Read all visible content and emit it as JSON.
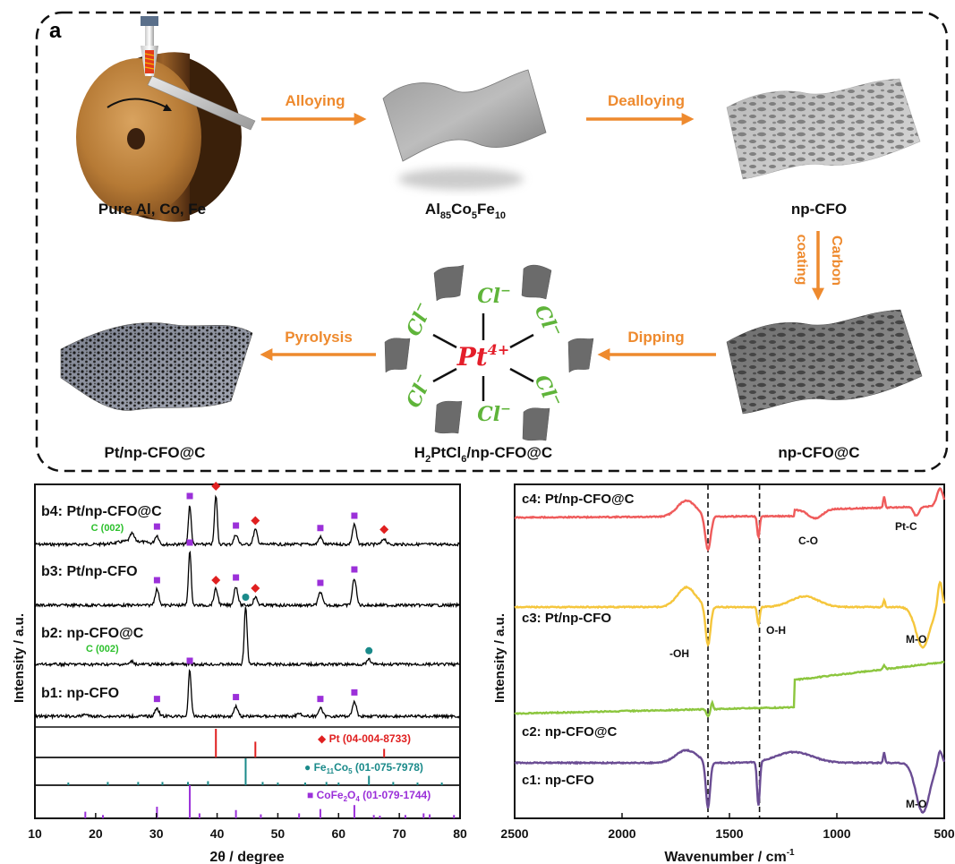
{
  "panel_a": {
    "label": "a",
    "step_labels": {
      "alloying": "Alloying",
      "dealloying": "Dealloying",
      "carbon": "Carbon",
      "coating": "coating",
      "dipping": "Dipping",
      "pyrolysis": "Pyrolysis"
    },
    "captions": {
      "pure": "Pure Al, Co, Fe",
      "alloy_al": "Al",
      "alloy_al_sub": "85",
      "alloy_co": "Co",
      "alloy_co_sub": "5",
      "alloy_fe": "Fe",
      "alloy_fe_sub": "10",
      "npcfo": "np-CFO",
      "npcfoc": "np-CFO@C",
      "h2_pre": "H",
      "h2_sub": "2",
      "pt_mid": "PtCl",
      "pt_sub": "6",
      "h2_post": "/np-CFO@C",
      "final": "Pt/np-CFO@C"
    },
    "complex": {
      "center": "Pt",
      "center_sup": "4+",
      "ligand": "Cl",
      "ligand_sup": "−"
    },
    "colors": {
      "arrow": "#ee8a2e",
      "pt": "#e41e2a",
      "cl": "#5fb43a"
    }
  },
  "chart_data": [
    {
      "type": "line",
      "panel": "b",
      "xlabel": "2θ / degree",
      "ylabel": "Intensity / a.u.",
      "xlim": [
        10,
        80
      ],
      "xticks": [
        "10",
        "20",
        "30",
        "40",
        "50",
        "60",
        "70",
        "80"
      ],
      "series": [
        {
          "name": "b4: Pt/np-CFO@C",
          "color": "#000000",
          "peaks": [
            {
              "x": 26,
              "h": 0.15
            },
            {
              "x": 30.1,
              "h": 0.18
            },
            {
              "x": 35.5,
              "h": 0.8
            },
            {
              "x": 39.8,
              "h": 1.0
            },
            {
              "x": 43.1,
              "h": 0.2
            },
            {
              "x": 46.3,
              "h": 0.3
            },
            {
              "x": 57,
              "h": 0.15
            },
            {
              "x": 62.6,
              "h": 0.4
            },
            {
              "x": 67.5,
              "h": 0.12
            }
          ]
        },
        {
          "name": "b3: Pt/np-CFO",
          "color": "#000000",
          "peaks": [
            {
              "x": 30.1,
              "h": 0.3
            },
            {
              "x": 35.5,
              "h": 1.0
            },
            {
              "x": 39.8,
              "h": 0.3
            },
            {
              "x": 43.1,
              "h": 0.35
            },
            {
              "x": 46.3,
              "h": 0.15
            },
            {
              "x": 57,
              "h": 0.25
            },
            {
              "x": 62.6,
              "h": 0.5
            }
          ]
        },
        {
          "name": "b2: np-CFO@C",
          "color": "#000000",
          "peaks": [
            {
              "x": 26,
              "h": 0.05
            },
            {
              "x": 44.7,
              "h": 1.0
            },
            {
              "x": 65,
              "h": 0.08
            }
          ]
        },
        {
          "name": "b1: np-CFO",
          "color": "#000000",
          "peaks": [
            {
              "x": 18.3,
              "h": 0.05
            },
            {
              "x": 30.1,
              "h": 0.18
            },
            {
              "x": 35.5,
              "h": 1.0
            },
            {
              "x": 43.1,
              "h": 0.22
            },
            {
              "x": 53.5,
              "h": 0.08
            },
            {
              "x": 57,
              "h": 0.18
            },
            {
              "x": 62.6,
              "h": 0.32
            }
          ]
        }
      ],
      "annotations": {
        "c002": "C (002)"
      },
      "references": [
        {
          "name_main": "Pt (04-004-8733)",
          "color": "#e02020",
          "marker": "diamond",
          "lines": [
            {
              "x": 39.8,
              "h": 1.0
            },
            {
              "x": 46.3,
              "h": 0.55
            },
            {
              "x": 67.5,
              "h": 0.3
            }
          ]
        },
        {
          "name_main": "Fe",
          "sub1": "11",
          "name_mid": "Co",
          "sub2": "5",
          "name_tail": " (01-075-7978)",
          "color": "#1a8a8a",
          "marker": "circle",
          "lines": [
            {
              "x": 15.5,
              "h": 0.1
            },
            {
              "x": 22,
              "h": 0.12
            },
            {
              "x": 27,
              "h": 0.12
            },
            {
              "x": 31,
              "h": 0.12
            },
            {
              "x": 35.2,
              "h": 0.12
            },
            {
              "x": 38.5,
              "h": 0.15
            },
            {
              "x": 44.7,
              "h": 1.0
            },
            {
              "x": 47.5,
              "h": 0.12
            },
            {
              "x": 50,
              "h": 0.1
            },
            {
              "x": 54.5,
              "h": 0.1
            },
            {
              "x": 58,
              "h": 0.12
            },
            {
              "x": 60,
              "h": 0.1
            },
            {
              "x": 65,
              "h": 0.35
            },
            {
              "x": 69,
              "h": 0.12
            },
            {
              "x": 73,
              "h": 0.1
            },
            {
              "x": 77,
              "h": 0.1
            }
          ]
        },
        {
          "name_main": "CoFe",
          "sub1": "2",
          "name_mid": "O",
          "sub2": "4",
          "name_tail": " (01-079-1744)",
          "color": "#9b30d9",
          "marker": "square",
          "lines": [
            {
              "x": 18.3,
              "h": 0.2
            },
            {
              "x": 21.2,
              "h": 0.1
            },
            {
              "x": 30.1,
              "h": 0.35
            },
            {
              "x": 35.5,
              "h": 1.0
            },
            {
              "x": 37.1,
              "h": 0.15
            },
            {
              "x": 43.1,
              "h": 0.25
            },
            {
              "x": 47.2,
              "h": 0.12
            },
            {
              "x": 53.5,
              "h": 0.15
            },
            {
              "x": 57,
              "h": 0.28
            },
            {
              "x": 62.6,
              "h": 0.4
            },
            {
              "x": 65.8,
              "h": 0.1
            },
            {
              "x": 66.8,
              "h": 0.08
            },
            {
              "x": 71,
              "h": 0.1
            },
            {
              "x": 74,
              "h": 0.15
            },
            {
              "x": 75,
              "h": 0.12
            },
            {
              "x": 79,
              "h": 0.1
            }
          ]
        }
      ]
    },
    {
      "type": "line",
      "panel": "c",
      "xlabel": "Wavenumber / cm",
      "xlabel_sup": "-1",
      "ylabel": "Intensity / a.u.",
      "xlim": [
        2500,
        500
      ],
      "xticks": [
        "2500",
        "2000",
        "1500",
        "1000",
        "500"
      ],
      "dashed_lines_x": [
        1600,
        1360
      ],
      "series": [
        {
          "name": "c4: Pt/np-CFO@C",
          "color": "#ef5b5b"
        },
        {
          "name": "c3: Pt/np-CFO",
          "color": "#f5c63c"
        },
        {
          "name": "c2: np-CFO@C",
          "color": "#8cc63e"
        },
        {
          "name": "c1: np-CFO",
          "color": "#6a4c93"
        }
      ],
      "annotations": {
        "co": "C-O",
        "ptc": "Pt-C",
        "oh_left": "-OH",
        "oh_right": "O-H",
        "mo1": "M-O",
        "mo2": "M-O"
      }
    }
  ]
}
